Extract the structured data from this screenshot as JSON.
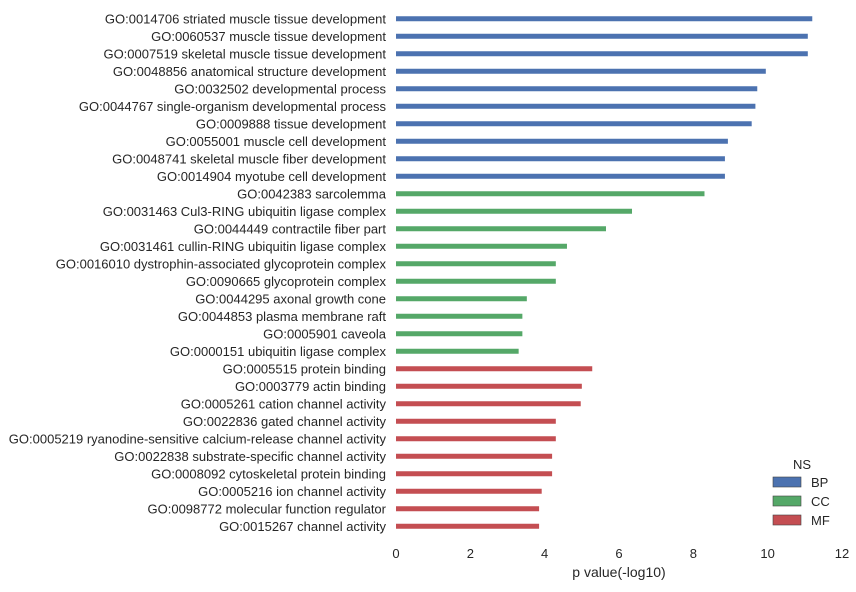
{
  "chart_data": {
    "type": "bar",
    "orientation": "horizontal",
    "title": "",
    "xlabel": "p value(-log10)",
    "ylabel": "",
    "xlim": [
      0,
      12
    ],
    "xticks": [
      0,
      2,
      4,
      6,
      8,
      10,
      12
    ],
    "grid": false,
    "legend": {
      "title": "NS",
      "placement": "bottom-right",
      "entries": [
        {
          "name": "BP",
          "color": "#4c72b0"
        },
        {
          "name": "CC",
          "color": "#55a868"
        },
        {
          "name": "MF",
          "color": "#c44e52"
        }
      ]
    },
    "categories": [
      "GO:0014706 striated muscle tissue development",
      "GO:0060537 muscle tissue development",
      "GO:0007519 skeletal muscle tissue development",
      "GO:0048856 anatomical structure development",
      "GO:0032502 developmental process",
      "GO:0044767 single-organism developmental process",
      "GO:0009888 tissue development",
      "GO:0055001 muscle cell development",
      "GO:0048741 skeletal muscle fiber development",
      "GO:0014904 myotube cell development",
      "GO:0042383 sarcolemma",
      "GO:0031463 Cul3-RING ubiquitin ligase complex",
      "GO:0044449 contractile fiber part",
      "GO:0031461 cullin-RING ubiquitin ligase complex",
      "GO:0016010 dystrophin-associated glycoprotein complex",
      "GO:0090665 glycoprotein complex",
      "GO:0044295 axonal growth cone",
      "GO:0044853 plasma membrane raft",
      "GO:0005901 caveola",
      "GO:0000151 ubiquitin ligase complex",
      "GO:0005515 protein binding",
      "GO:0003779 actin binding",
      "GO:0005261 cation channel activity",
      "GO:0022836 gated channel activity",
      "GO:0005219 ryanodine-sensitive calcium-release channel activity",
      "GO:0022838 substrate-specific channel activity",
      "GO:0008092 cytoskeletal protein binding",
      "GO:0005216 ion channel activity",
      "GO:0098772 molecular function regulator",
      "GO:0015267 channel activity"
    ],
    "values": [
      11.2,
      11.08,
      11.08,
      9.95,
      9.72,
      9.67,
      9.57,
      8.93,
      8.85,
      8.85,
      8.3,
      6.35,
      5.65,
      4.6,
      4.3,
      4.3,
      3.52,
      3.4,
      3.4,
      3.3,
      5.28,
      5.0,
      4.97,
      4.3,
      4.3,
      4.2,
      4.2,
      3.92,
      3.85,
      3.85
    ],
    "groups": [
      "BP",
      "BP",
      "BP",
      "BP",
      "BP",
      "BP",
      "BP",
      "BP",
      "BP",
      "BP",
      "CC",
      "CC",
      "CC",
      "CC",
      "CC",
      "CC",
      "CC",
      "CC",
      "CC",
      "CC",
      "MF",
      "MF",
      "MF",
      "MF",
      "MF",
      "MF",
      "MF",
      "MF",
      "MF",
      "MF"
    ]
  }
}
